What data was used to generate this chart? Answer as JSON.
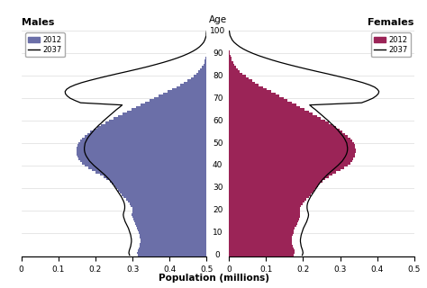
{
  "title_age": "Age",
  "xlabel": "Population (millions)",
  "males_title": "Males",
  "females_title": "Females",
  "legend_2012": "2012",
  "legend_2037": "2037",
  "male_color": "#6B6FA8",
  "female_color": "#9B2457",
  "line_color": "#000000",
  "bg_color": "#FFFFFF",
  "xlim": 0.5,
  "ylim_max": 101,
  "yticks": [
    0,
    10,
    20,
    30,
    40,
    50,
    60,
    70,
    80,
    90,
    100
  ],
  "xticks": [
    0.0,
    0.1,
    0.2,
    0.3,
    0.4,
    0.5
  ],
  "m2012": [
    0.185,
    0.187,
    0.186,
    0.184,
    0.182,
    0.18,
    0.179,
    0.179,
    0.18,
    0.181,
    0.183,
    0.185,
    0.187,
    0.19,
    0.193,
    0.196,
    0.199,
    0.201,
    0.202,
    0.201,
    0.2,
    0.201,
    0.204,
    0.208,
    0.213,
    0.218,
    0.224,
    0.229,
    0.234,
    0.239,
    0.244,
    0.249,
    0.255,
    0.262,
    0.27,
    0.279,
    0.289,
    0.299,
    0.309,
    0.319,
    0.329,
    0.336,
    0.341,
    0.345,
    0.348,
    0.35,
    0.351,
    0.351,
    0.35,
    0.348,
    0.346,
    0.342,
    0.337,
    0.33,
    0.322,
    0.314,
    0.305,
    0.296,
    0.285,
    0.274,
    0.263,
    0.251,
    0.239,
    0.227,
    0.215,
    0.203,
    0.191,
    0.179,
    0.167,
    0.154,
    0.142,
    0.129,
    0.117,
    0.105,
    0.093,
    0.082,
    0.071,
    0.061,
    0.052,
    0.043,
    0.035,
    0.028,
    0.022,
    0.017,
    0.013,
    0.009,
    0.007,
    0.005,
    0.003,
    0.002,
    0.001,
    0.001,
    0.0,
    0.0,
    0.0,
    0.0,
    0.0,
    0.0,
    0.0,
    0.0,
    0.0
  ],
  "f2012": [
    0.176,
    0.178,
    0.177,
    0.175,
    0.173,
    0.171,
    0.17,
    0.17,
    0.171,
    0.172,
    0.174,
    0.176,
    0.178,
    0.181,
    0.184,
    0.187,
    0.19,
    0.192,
    0.193,
    0.192,
    0.191,
    0.192,
    0.195,
    0.199,
    0.204,
    0.209,
    0.215,
    0.22,
    0.225,
    0.23,
    0.235,
    0.24,
    0.246,
    0.253,
    0.261,
    0.27,
    0.28,
    0.29,
    0.3,
    0.31,
    0.32,
    0.327,
    0.332,
    0.336,
    0.339,
    0.341,
    0.342,
    0.342,
    0.341,
    0.339,
    0.337,
    0.333,
    0.328,
    0.321,
    0.314,
    0.306,
    0.298,
    0.289,
    0.279,
    0.269,
    0.259,
    0.248,
    0.237,
    0.226,
    0.215,
    0.204,
    0.193,
    0.182,
    0.171,
    0.159,
    0.148,
    0.136,
    0.125,
    0.113,
    0.102,
    0.091,
    0.081,
    0.071,
    0.062,
    0.053,
    0.045,
    0.037,
    0.03,
    0.024,
    0.019,
    0.015,
    0.011,
    0.008,
    0.006,
    0.004,
    0.003,
    0.002,
    0.001,
    0.001,
    0.0,
    0.0,
    0.0,
    0.0,
    0.0,
    0.0,
    0.0
  ],
  "m2037": [
    0.208,
    0.21,
    0.209,
    0.207,
    0.205,
    0.204,
    0.203,
    0.203,
    0.204,
    0.205,
    0.207,
    0.209,
    0.211,
    0.214,
    0.217,
    0.22,
    0.222,
    0.224,
    0.225,
    0.224,
    0.222,
    0.221,
    0.221,
    0.222,
    0.224,
    0.227,
    0.23,
    0.234,
    0.238,
    0.242,
    0.246,
    0.25,
    0.254,
    0.259,
    0.264,
    0.27,
    0.276,
    0.283,
    0.29,
    0.297,
    0.304,
    0.31,
    0.316,
    0.32,
    0.324,
    0.327,
    0.329,
    0.33,
    0.33,
    0.329,
    0.328,
    0.325,
    0.322,
    0.318,
    0.313,
    0.308,
    0.303,
    0.297,
    0.291,
    0.284,
    0.278,
    0.271,
    0.264,
    0.257,
    0.25,
    0.243,
    0.235,
    0.228,
    0.34,
    0.355,
    0.368,
    0.376,
    0.381,
    0.382,
    0.378,
    0.369,
    0.355,
    0.337,
    0.315,
    0.291,
    0.266,
    0.24,
    0.213,
    0.187,
    0.162,
    0.139,
    0.117,
    0.097,
    0.079,
    0.063,
    0.049,
    0.037,
    0.027,
    0.019,
    0.013,
    0.008,
    0.005,
    0.003,
    0.001,
    0.001,
    0.0
  ],
  "f2037": [
    0.198,
    0.2,
    0.199,
    0.197,
    0.195,
    0.194,
    0.193,
    0.193,
    0.194,
    0.195,
    0.197,
    0.199,
    0.201,
    0.204,
    0.207,
    0.21,
    0.212,
    0.214,
    0.215,
    0.214,
    0.212,
    0.211,
    0.211,
    0.212,
    0.214,
    0.217,
    0.22,
    0.224,
    0.228,
    0.232,
    0.236,
    0.24,
    0.244,
    0.249,
    0.254,
    0.26,
    0.266,
    0.273,
    0.28,
    0.287,
    0.294,
    0.3,
    0.306,
    0.31,
    0.314,
    0.317,
    0.319,
    0.32,
    0.32,
    0.319,
    0.318,
    0.315,
    0.312,
    0.308,
    0.303,
    0.298,
    0.293,
    0.287,
    0.281,
    0.274,
    0.268,
    0.261,
    0.254,
    0.247,
    0.24,
    0.233,
    0.225,
    0.218,
    0.358,
    0.374,
    0.388,
    0.397,
    0.403,
    0.405,
    0.401,
    0.393,
    0.379,
    0.361,
    0.339,
    0.315,
    0.29,
    0.264,
    0.237,
    0.211,
    0.186,
    0.162,
    0.139,
    0.118,
    0.099,
    0.081,
    0.065,
    0.051,
    0.039,
    0.029,
    0.021,
    0.014,
    0.009,
    0.006,
    0.003,
    0.002,
    0.001
  ]
}
